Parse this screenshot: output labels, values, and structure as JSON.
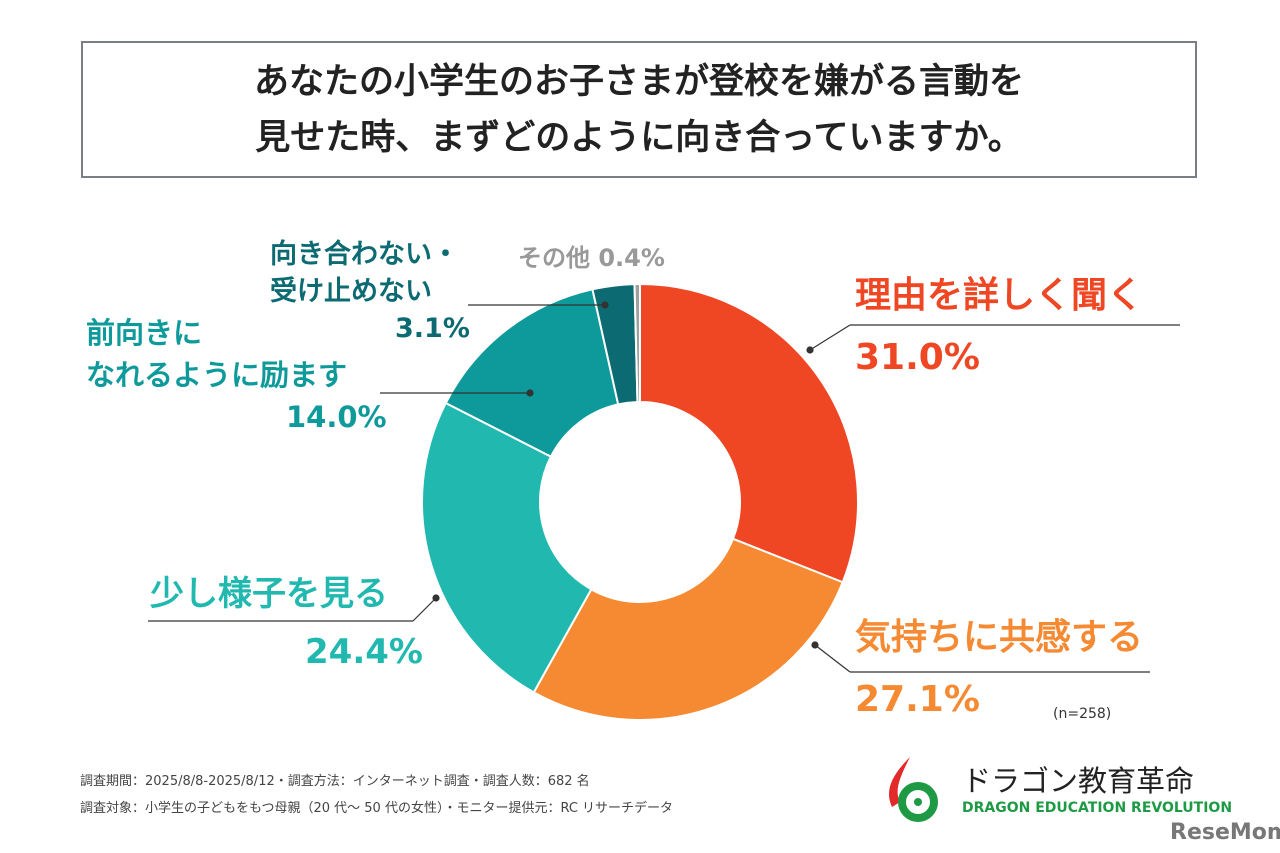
{
  "title": "あなたの小学生のお子さまが登校を嫌がる言動を\n見せた時、まずどのように向き合っていますか。",
  "chart_data": {
    "type": "pie",
    "title": "あなたの小学生のお子さまが登校を嫌がる言動を見せた時、まずどのように向き合っていますか。",
    "categories": [
      "理由を詳しく聞く",
      "気持ちに共感する",
      "少し様子を見る",
      "前向きになれるように励ます",
      "向き合わない・受け止めない",
      "その他"
    ],
    "values": [
      31.0,
      27.1,
      24.4,
      14.0,
      3.1,
      0.4
    ],
    "value_labels": [
      "31.0%",
      "27.1%",
      "24.4%",
      "14.0%",
      "3.1%",
      "0.4%"
    ],
    "colors": [
      "#EF4623",
      "#F58A33",
      "#21B8B0",
      "#0E9A9A",
      "#0C6B72",
      "#A0A0A0"
    ],
    "donut": true,
    "n_label": "(n=258)"
  },
  "labels": [
    {
      "name": "理由を詳しく聞く",
      "value": "31.0%"
    },
    {
      "name": "気持ちに共感する",
      "value": "27.1%"
    },
    {
      "name": "少し様子を見る",
      "value": "24.4%"
    },
    {
      "name": "前向きに\nなれるように励ます",
      "value": "14.0%"
    },
    {
      "name": "向き合わない・\n受け止めない",
      "value": "3.1%"
    },
    {
      "name": "その他",
      "value": "0.4%"
    }
  ],
  "footnotes": [
    "調査期間：2025/8/8-2025/8/12・調査方法：インターネット調査・調査人数：682 名",
    "調査対象：小学生の子どもをもつ母親（20 代～ 50 代の女性）・モニター提供元：RC リサーチデータ"
  ],
  "logo": {
    "jp": "ドラゴン教育革命",
    "en": "DRAGON EDUCATION REVOLUTION"
  },
  "watermark": "ReseMom"
}
